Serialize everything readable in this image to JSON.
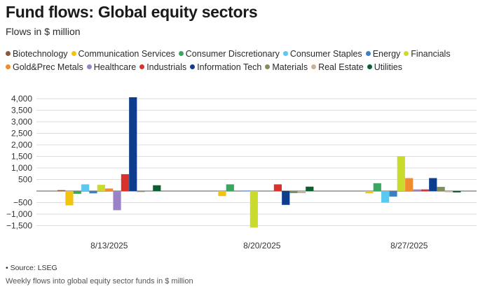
{
  "title": "Fund flows: Global equity sectors",
  "subtitle": "Flows in $ million",
  "source": "• Source: LSEG",
  "caption": "Weekly flows into global equity sector funds in $ million",
  "chart_data": {
    "type": "bar",
    "title": "Fund flows: Global equity sectors",
    "subtitle": "Flows in $ million",
    "xlabel": "",
    "ylabel": "",
    "ylim": [
      -1800,
      4200
    ],
    "yticks": [
      4000,
      3500,
      3000,
      2500,
      2000,
      1500,
      1000,
      500,
      -500,
      -1000,
      -1500
    ],
    "ytick_labels": [
      "4,000",
      "3,500",
      "3,000",
      "2,500",
      "2,000",
      "1,500",
      "1,000",
      "500",
      "−500",
      "−1,000",
      "−1,500"
    ],
    "grid": true,
    "legend_position": "top",
    "categories": [
      "8/13/2025",
      "8/20/2025",
      "8/27/2025"
    ],
    "series": [
      {
        "name": "Biotechnology",
        "color": "#8b5a3c",
        "values": [
          40,
          0,
          0
        ]
      },
      {
        "name": "Communication Services",
        "color": "#f2c40f",
        "values": [
          -620,
          -220,
          -100
        ]
      },
      {
        "name": "Consumer Discretionary",
        "color": "#3aa660",
        "values": [
          -120,
          290,
          340
        ]
      },
      {
        "name": "Consumer Staples",
        "color": "#5bc8ef",
        "values": [
          290,
          0,
          -500
        ]
      },
      {
        "name": "Energy",
        "color": "#3b7fc4",
        "values": [
          -100,
          20,
          -240
        ]
      },
      {
        "name": "Financials",
        "color": "#c9dc2e",
        "values": [
          270,
          -1580,
          1510
        ]
      },
      {
        "name": "Gold&Prec Metals",
        "color": "#f08c2e",
        "values": [
          110,
          0,
          560
        ]
      },
      {
        "name": "Healthcare",
        "color": "#9b82c6",
        "values": [
          -830,
          0,
          70
        ]
      },
      {
        "name": "Industrials",
        "color": "#d9312b",
        "values": [
          730,
          290,
          70
        ]
      },
      {
        "name": "Information Tech",
        "color": "#0d3d8c",
        "values": [
          4060,
          -600,
          560
        ]
      },
      {
        "name": "Materials",
        "color": "#7f8f5c",
        "values": [
          -40,
          -90,
          180
        ]
      },
      {
        "name": "Real Estate",
        "color": "#c9b09a",
        "values": [
          0,
          -90,
          -50
        ]
      },
      {
        "name": "Utilities",
        "color": "#0e5f2e",
        "values": [
          250,
          190,
          -60
        ]
      }
    ]
  }
}
